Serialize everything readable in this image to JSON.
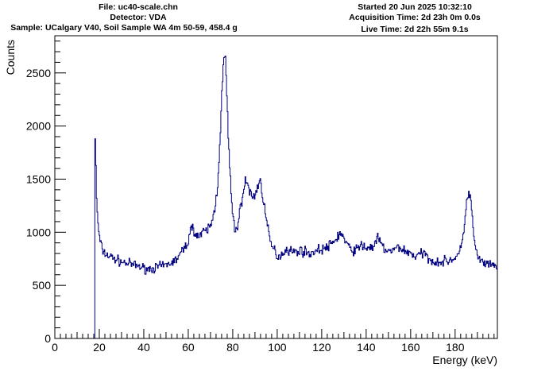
{
  "header": {
    "left": {
      "file": "File: uc40-scale.chn",
      "detector": "Detector: VDA",
      "sample": "Sample: UCalgary V40, Soil Sample WA 4m 50-59, 458.4 g"
    },
    "right": {
      "started": "Started 20 Jun 2025 10:32:10",
      "acquisition": "Acquisition Time: 2d 23h 0m 0.0s",
      "live": "Live Time: 2d 22h 55m 9.1s"
    }
  },
  "chart_data": {
    "type": "line",
    "title": "",
    "xlabel": "Energy (keV)",
    "ylabel": "Counts",
    "xlim": [
      0,
      199
    ],
    "ylim": [
      0,
      2850
    ],
    "x_ticks": [
      0,
      20,
      40,
      60,
      80,
      100,
      120,
      140,
      160,
      180
    ],
    "y_ticks": [
      0,
      500,
      1000,
      1500,
      2000,
      2500
    ],
    "line_color": "#000080",
    "style": "step histogram",
    "grid": false,
    "series": [
      {
        "x": [
          18,
          18.3,
          18.5,
          19,
          20,
          21,
          22,
          24,
          26,
          28,
          30,
          32,
          34,
          36,
          38,
          40,
          42,
          44,
          46,
          48,
          50,
          52,
          54,
          56,
          58,
          60,
          61,
          62,
          63,
          64,
          66,
          68,
          70,
          71,
          72,
          73,
          74,
          75,
          76,
          76.5,
          77,
          78,
          79,
          80,
          81,
          82,
          83,
          84,
          85,
          86,
          87,
          88,
          89,
          90,
          91,
          92,
          93,
          94,
          95,
          96,
          97,
          98,
          99,
          100,
          102,
          104,
          106,
          108,
          110,
          112,
          114,
          116,
          118,
          120,
          122,
          124,
          126,
          128,
          129,
          130,
          132,
          134,
          136,
          138,
          140,
          142,
          144,
          145,
          146,
          148,
          150,
          152,
          154,
          156,
          158,
          160,
          162,
          164,
          166,
          168,
          170,
          172,
          174,
          176,
          178,
          180,
          182,
          183,
          184,
          185,
          186,
          187,
          188,
          189,
          190,
          191,
          192,
          194,
          196,
          198,
          199
        ],
        "y": [
          1880,
          1650,
          1450,
          1200,
          950,
          860,
          810,
          780,
          760,
          740,
          720,
          710,
          700,
          690,
          680,
          660,
          655,
          660,
          670,
          680,
          690,
          710,
          730,
          780,
          840,
          920,
          1000,
          1060,
          1010,
          960,
          980,
          1010,
          1060,
          1120,
          1230,
          1400,
          1750,
          2250,
          2600,
          2700,
          2500,
          1900,
          1450,
          1150,
          1020,
          1050,
          1150,
          1300,
          1420,
          1480,
          1440,
          1360,
          1320,
          1350,
          1420,
          1480,
          1430,
          1280,
          1130,
          1000,
          900,
          850,
          830,
          770,
          790,
          840,
          830,
          810,
          830,
          820,
          800,
          810,
          830,
          840,
          850,
          880,
          920,
          990,
          980,
          940,
          860,
          830,
          840,
          880,
          850,
          860,
          870,
          960,
          910,
          850,
          820,
          820,
          860,
          850,
          810,
          810,
          770,
          790,
          800,
          760,
          730,
          720,
          720,
          730,
          740,
          760,
          800,
          880,
          1050,
          1250,
          1380,
          1320,
          1050,
          860,
          780,
          740,
          720,
          700,
          680,
          690,
          670
        ]
      }
    ]
  }
}
